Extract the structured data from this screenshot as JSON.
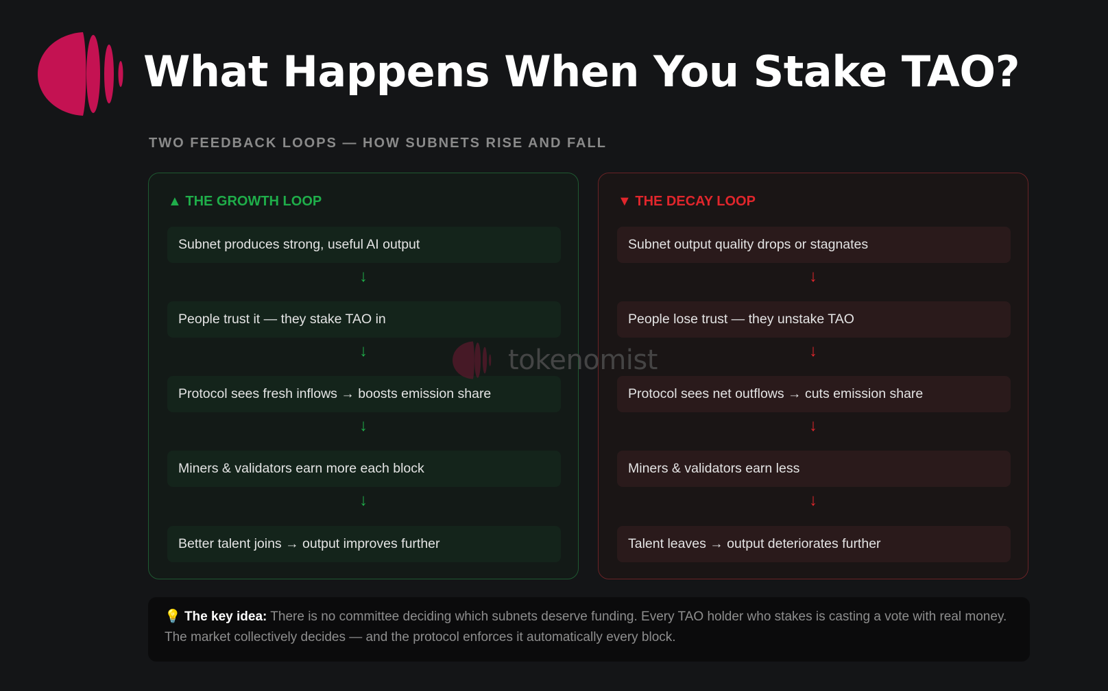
{
  "header": {
    "title": "What Happens When You Stake TAO?",
    "subtitle": "TWO FEEDBACK LOOPS — HOW SUBNETS RISE AND FALL",
    "logo_icon": "tokenomist-logo",
    "brand_color": "#c41252"
  },
  "growth_loop": {
    "icon": "triangle-up",
    "title": "▲ THE GROWTH LOOP",
    "color": "#1fae4a",
    "steps": [
      "Subnet produces strong, useful AI output",
      "People trust it — they stake TAO in",
      "Protocol sees fresh inflows → boosts emission share",
      "Miners & validators earn more each block",
      "Better talent joins → output improves further"
    ],
    "arrow": "↓"
  },
  "decay_loop": {
    "icon": "triangle-down",
    "title": "▼ THE DECAY LOOP",
    "color": "#e1262c",
    "steps": [
      "Subnet output quality drops or stagnates",
      "People lose trust — they unstake TAO",
      "Protocol sees net outflows → cuts emission share",
      "Miners & validators earn less",
      "Talent leaves → output deteriorates further"
    ],
    "arrow": "↓"
  },
  "watermark": {
    "text": "tokenomist"
  },
  "key_idea": {
    "icon": "lightbulb",
    "emoji": "💡",
    "label": "The key idea:",
    "text": " There is no committee deciding which subnets deserve funding. Every TAO holder who stakes is casting a vote with real money. The market collectively decides — and the protocol enforces it automatically every block."
  }
}
